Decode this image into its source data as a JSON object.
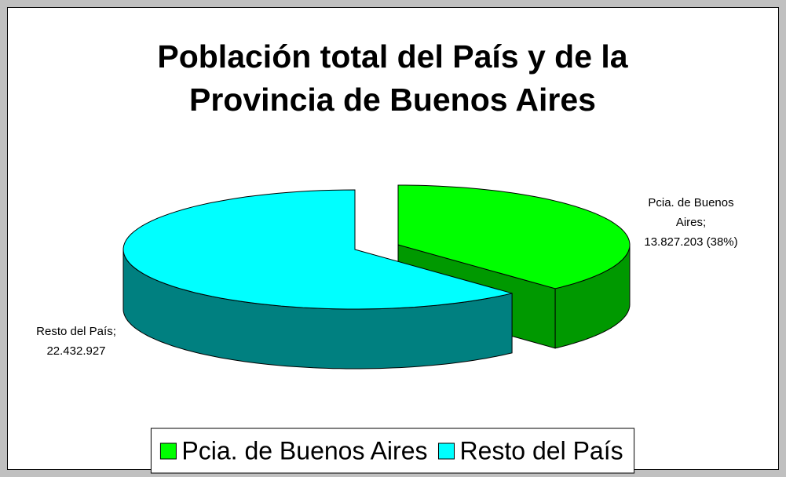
{
  "chart_data": {
    "type": "pie3d",
    "title": [
      "Población total del País y de la",
      "Provincia de Buenos Aires"
    ],
    "categories": [
      "Pcia. de Buenos Aires",
      "Resto del País"
    ],
    "values": [
      13827203,
      22432927
    ],
    "value_labels": [
      "Pcia. de Buenos Aires;\n13.827.203 (38%)",
      "Resto del País;\n22.432.927"
    ],
    "colors": [
      "#00ff00",
      "#00ffff"
    ],
    "side_colors": [
      "#009900",
      "#008080"
    ],
    "legend": "bottom"
  }
}
